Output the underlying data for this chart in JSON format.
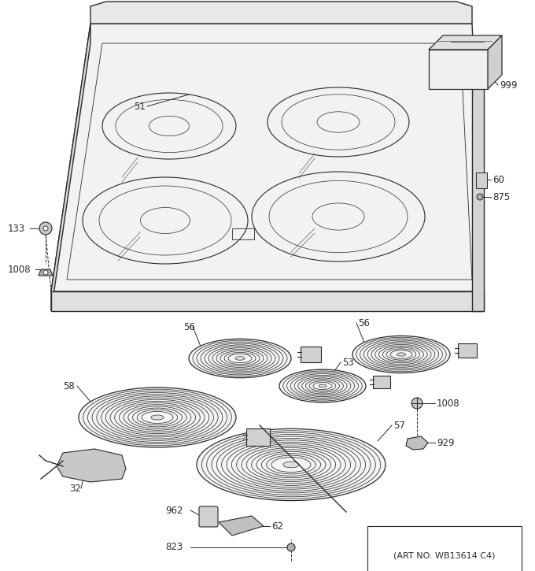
{
  "art_no": "(ART NO. WB13614 C4)",
  "bg_color": "#ffffff",
  "lc": "#2a2a2a",
  "fig_width": 6.8,
  "fig_height": 7.25,
  "dpi": 100
}
